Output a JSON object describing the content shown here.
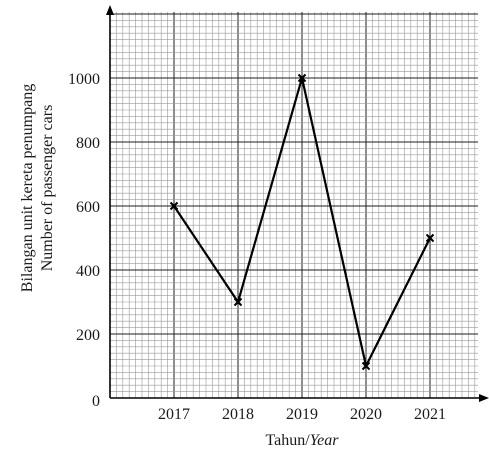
{
  "chart_data": {
    "type": "line",
    "categories": [
      "2017",
      "2018",
      "2019",
      "2020",
      "2021"
    ],
    "values": [
      600,
      300,
      1000,
      100,
      500
    ],
    "ylim": [
      0,
      1150
    ],
    "yticks": [
      0,
      200,
      400,
      600,
      800,
      1000
    ],
    "origin_label": "0",
    "ylabel_line1": "Bilangan unit kereta penumpang",
    "ylabel_line2": "Number of passenger cars",
    "xlabel_main": "Tahun/",
    "xlabel_italic": "Year",
    "grid": true,
    "marker": "x",
    "colors": {
      "line": "#000000",
      "grid_major": "#1e1e1e",
      "grid_minor": "#9a9a9a"
    }
  }
}
